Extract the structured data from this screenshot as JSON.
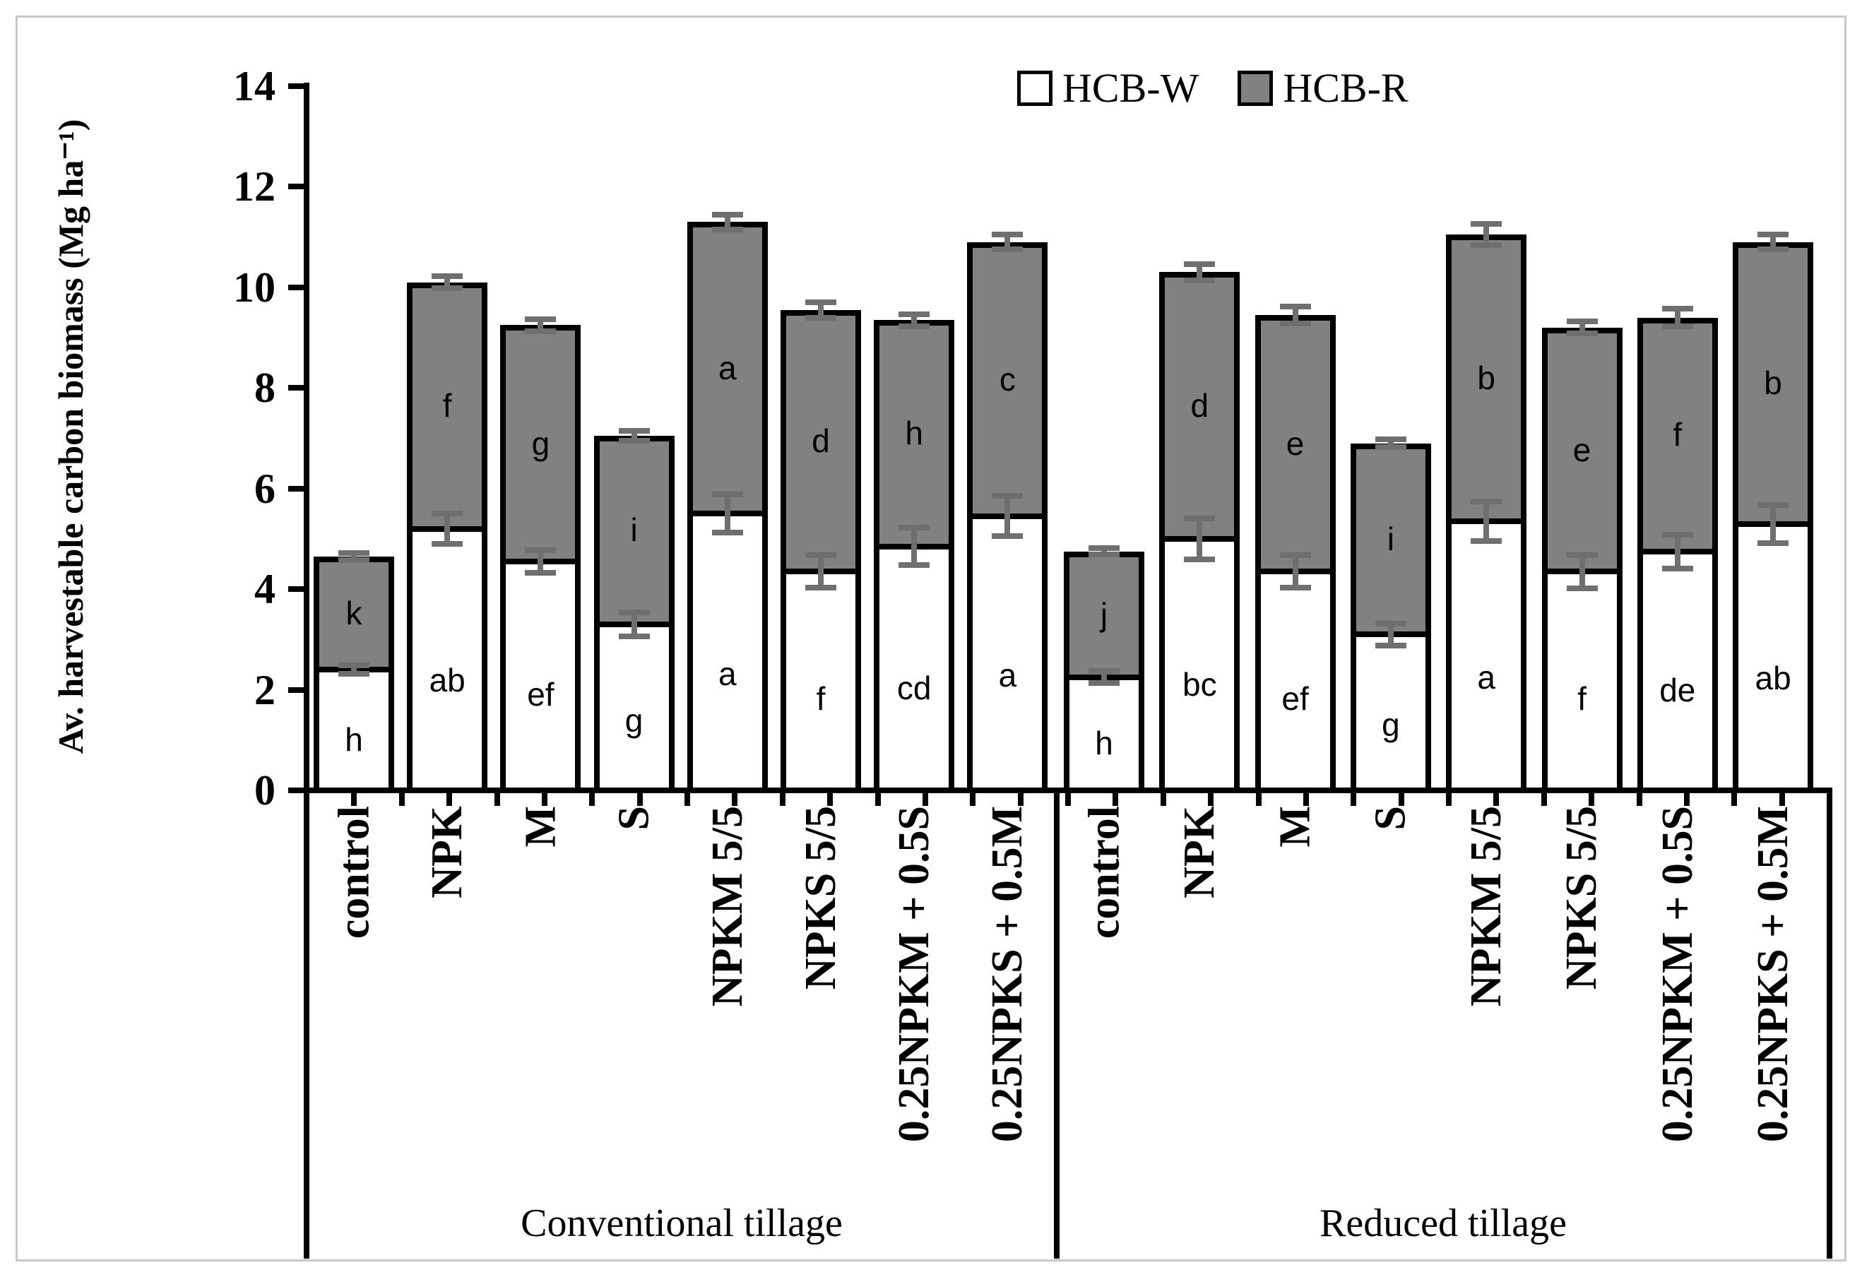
{
  "y_axis": {
    "title": "Av. harvestable carbon biomass (Mg ha⁻¹)",
    "tick_labels": [
      "0",
      "2",
      "4",
      "6",
      "8",
      "10",
      "12",
      "14"
    ]
  },
  "legend": {
    "items": [
      {
        "label": "HCB-W",
        "series_key": "hcb_w",
        "color": "#ffffff"
      },
      {
        "label": "HCB-R",
        "series_key": "hcb_r",
        "color": "#818181"
      }
    ]
  },
  "colors": {
    "hcb_w_fill": "#ffffff",
    "hcb_r_fill": "#818181",
    "bar_border": "#000000",
    "error_bar": "#6f6f6f",
    "axis": "#000000",
    "frame": "#c8c8c8"
  },
  "chart_data": {
    "type": "bar",
    "stacked": true,
    "title": "",
    "xlabel": "",
    "ylabel": "Av. harvestable carbon biomass (Mg ha⁻¹)",
    "ylim": [
      0,
      14
    ],
    "ytick_interval": 2,
    "grid": false,
    "legend_position": "top",
    "series_names": [
      "HCB-W",
      "HCB-R"
    ],
    "groups": [
      {
        "label": "Conventional tillage",
        "bars": [
          {
            "category": "control",
            "hcb_w": 2.4,
            "hcb_r": 2.25,
            "total": 4.65,
            "hcb_w_err": 0.08,
            "total_err": 0.07,
            "hcb_w_letter": "h",
            "hcb_r_letter": "k"
          },
          {
            "category": "NPK",
            "hcb_w": 5.2,
            "hcb_r": 4.9,
            "total": 10.1,
            "hcb_w_err": 0.3,
            "total_err": 0.12,
            "hcb_w_letter": "ab",
            "hcb_r_letter": "f"
          },
          {
            "category": "M",
            "hcb_w": 4.55,
            "hcb_r": 4.7,
            "total": 9.25,
            "hcb_w_err": 0.23,
            "total_err": 0.12,
            "hcb_w_letter": "ef",
            "hcb_r_letter": "g"
          },
          {
            "category": "S",
            "hcb_w": 3.3,
            "hcb_r": 3.75,
            "total": 7.05,
            "hcb_w_err": 0.24,
            "total_err": 0.1,
            "hcb_w_letter": "g",
            "hcb_r_letter": "i"
          },
          {
            "category": "NPKM 5/5",
            "hcb_w": 5.5,
            "hcb_r": 5.8,
            "total": 11.3,
            "hcb_w_err": 0.38,
            "total_err": 0.15,
            "hcb_w_letter": "a",
            "hcb_r_letter": "a"
          },
          {
            "category": "NPKS 5/5",
            "hcb_w": 4.35,
            "hcb_r": 5.2,
            "total": 9.55,
            "hcb_w_err": 0.32,
            "total_err": 0.15,
            "hcb_w_letter": "f",
            "hcb_r_letter": "d"
          },
          {
            "category": "0.25NPKM + 0.5S",
            "hcb_w": 4.85,
            "hcb_r": 4.5,
            "total": 9.35,
            "hcb_w_err": 0.37,
            "total_err": 0.12,
            "hcb_w_letter": "cd",
            "hcb_r_letter": "h"
          },
          {
            "category": "0.25NPKS + 0.5M",
            "hcb_w": 5.45,
            "hcb_r": 5.45,
            "total": 10.9,
            "hcb_w_err": 0.4,
            "total_err": 0.15,
            "hcb_w_letter": "a",
            "hcb_r_letter": "c"
          }
        ]
      },
      {
        "label": "Reduced tillage",
        "bars": [
          {
            "category": "control",
            "hcb_w": 2.25,
            "hcb_r": 2.5,
            "total": 4.75,
            "hcb_w_err": 0.12,
            "total_err": 0.06,
            "hcb_w_letter": "h",
            "hcb_r_letter": "j"
          },
          {
            "category": "NPK",
            "hcb_w": 5.0,
            "hcb_r": 5.3,
            "total": 10.3,
            "hcb_w_err": 0.41,
            "total_err": 0.16,
            "hcb_w_letter": "bc",
            "hcb_r_letter": "d"
          },
          {
            "category": "M",
            "hcb_w": 4.35,
            "hcb_r": 5.1,
            "total": 9.45,
            "hcb_w_err": 0.32,
            "total_err": 0.17,
            "hcb_w_letter": "ef",
            "hcb_r_letter": "e"
          },
          {
            "category": "S",
            "hcb_w": 3.1,
            "hcb_r": 3.8,
            "total": 6.9,
            "hcb_w_err": 0.22,
            "total_err": 0.08,
            "hcb_w_letter": "g",
            "hcb_r_letter": "i"
          },
          {
            "category": "NPKM 5/5",
            "hcb_w": 5.35,
            "hcb_r": 5.7,
            "total": 11.05,
            "hcb_w_err": 0.39,
            "total_err": 0.21,
            "hcb_w_letter": "a",
            "hcb_r_letter": "b"
          },
          {
            "category": "NPKS 5/5",
            "hcb_w": 4.35,
            "hcb_r": 4.85,
            "total": 9.2,
            "hcb_w_err": 0.33,
            "total_err": 0.12,
            "hcb_w_letter": "f",
            "hcb_r_letter": "e"
          },
          {
            "category": "0.25NPKM + 0.5S",
            "hcb_w": 4.75,
            "hcb_r": 4.65,
            "total": 9.4,
            "hcb_w_err": 0.34,
            "total_err": 0.17,
            "hcb_w_letter": "de",
            "hcb_r_letter": "f"
          },
          {
            "category": "0.25NPKS + 0.5M",
            "hcb_w": 5.3,
            "hcb_r": 5.6,
            "total": 10.9,
            "hcb_w_err": 0.38,
            "total_err": 0.15,
            "hcb_w_letter": "ab",
            "hcb_r_letter": "b"
          }
        ]
      }
    ]
  }
}
